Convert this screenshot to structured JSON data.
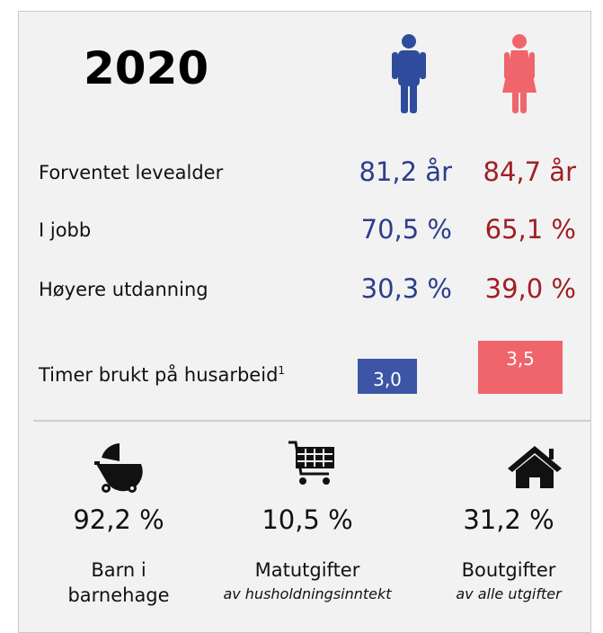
{
  "year": "2020",
  "rows": [
    {
      "label": "Forventet levealder",
      "men": "81,2 år",
      "women": "84,7 år"
    },
    {
      "label": "I jobb",
      "men": "70,5 %",
      "women": "65,1 %"
    },
    {
      "label": "Høyere utdanning",
      "men": "30,3 %",
      "women": "39,0 %"
    }
  ],
  "housework": {
    "label": "Timer brukt på husarbeid",
    "note": "1",
    "men": "3,0",
    "women": "3,5"
  },
  "stats": [
    {
      "value": "92,2 %",
      "label": "Barn i barnehage"
    },
    {
      "value": "10,5 %",
      "label": "Matutgifter",
      "sub": "av husholdningsinntekt"
    },
    {
      "value": "31,2 %",
      "label": "Boutgifter",
      "sub": "av alle utgifter"
    }
  ]
}
